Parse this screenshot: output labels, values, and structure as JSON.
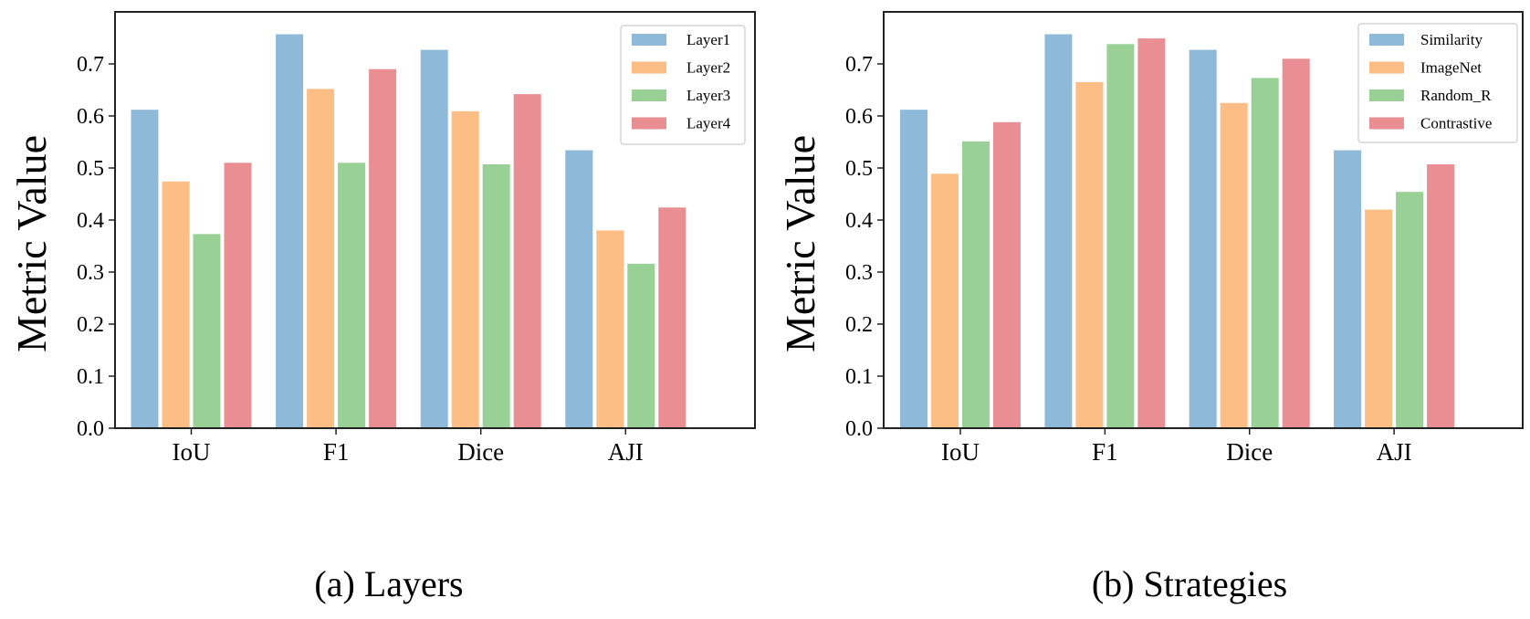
{
  "chart_data": [
    {
      "type": "bar",
      "id": "a",
      "caption": "(a)  Layers",
      "ylabel": "Metric Value",
      "xlabel": "",
      "ylim": [
        0,
        0.8
      ],
      "yticks": [
        "0.0",
        "0.1",
        "0.2",
        "0.3",
        "0.4",
        "0.5",
        "0.6",
        "0.7"
      ],
      "categories": [
        "IoU",
        "F1",
        "Dice",
        "AJI"
      ],
      "legend_position": "top-right",
      "series": [
        {
          "name": "Layer1",
          "color": "#8fb9d8",
          "values": [
            0.612,
            0.757,
            0.727,
            0.534
          ]
        },
        {
          "name": "Layer2",
          "color": "#fdbe85",
          "values": [
            0.474,
            0.652,
            0.609,
            0.38
          ]
        },
        {
          "name": "Layer3",
          "color": "#98d095",
          "values": [
            0.373,
            0.51,
            0.507,
            0.316
          ]
        },
        {
          "name": "Layer4",
          "color": "#e98f93",
          "values": [
            0.51,
            0.69,
            0.642,
            0.424
          ]
        }
      ]
    },
    {
      "type": "bar",
      "id": "b",
      "caption": "(b)  Strategies",
      "ylabel": "Metric Value",
      "xlabel": "",
      "ylim": [
        0,
        0.8
      ],
      "yticks": [
        "0.0",
        "0.1",
        "0.2",
        "0.3",
        "0.4",
        "0.5",
        "0.6",
        "0.7"
      ],
      "categories": [
        "IoU",
        "F1",
        "Dice",
        "AJI"
      ],
      "legend_position": "top-right",
      "series": [
        {
          "name": "Similarity",
          "color": "#8fb9d8",
          "values": [
            0.612,
            0.757,
            0.727,
            0.534
          ]
        },
        {
          "name": "ImageNet",
          "color": "#fdbe85",
          "values": [
            0.489,
            0.665,
            0.625,
            0.42
          ]
        },
        {
          "name": "Random_R",
          "color": "#98d095",
          "values": [
            0.551,
            0.738,
            0.673,
            0.454
          ]
        },
        {
          "name": "Contrastive",
          "color": "#e98f93",
          "values": [
            0.588,
            0.749,
            0.71,
            0.507
          ]
        }
      ]
    }
  ]
}
